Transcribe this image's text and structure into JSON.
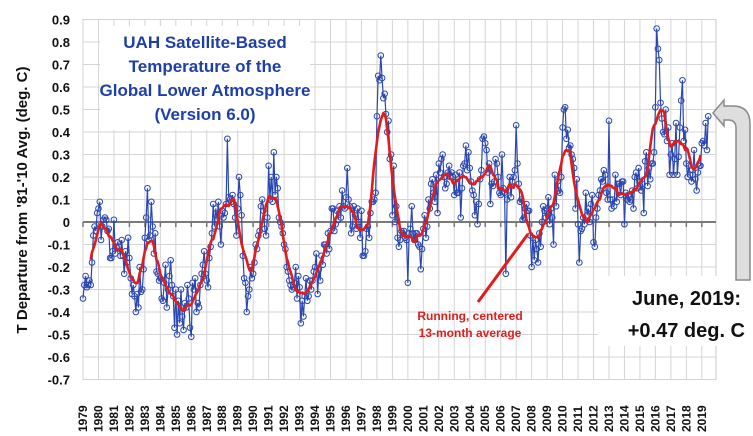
{
  "chart_data": {
    "type": "line",
    "title": [
      "UAH Satellite-Based",
      "Temperature of the",
      "Global Lower Atmosphere",
      "(Version 6.0)"
    ],
    "ylabel": "T Departure from '81-'10 Avg. (deg. C)",
    "xlabel": "",
    "ylim": [
      -0.7,
      0.9
    ],
    "yticks": [
      "0.9",
      "0.8",
      "0.7",
      "0.6",
      "0.5",
      "0.4",
      "0.3",
      "0.2",
      "0.1",
      "0",
      "-0.1",
      "-0.2",
      "-0.3",
      "-0.4",
      "-0.5",
      "-0.6",
      "-0.7"
    ],
    "xticks": [
      "1979",
      "1980",
      "1981",
      "1982",
      "1983",
      "1984",
      "1985",
      "1986",
      "1987",
      "1988",
      "1989",
      "1990",
      "1991",
      "1992",
      "1993",
      "1994",
      "1995",
      "1996",
      "1997",
      "1998",
      "1999",
      "2000",
      "2001",
      "2002",
      "2003",
      "2004",
      "2005",
      "2006",
      "2007",
      "2008",
      "2009",
      "2010",
      "2011",
      "2012",
      "2013",
      "2014",
      "2015",
      "2016",
      "2017",
      "2018",
      "2019"
    ],
    "grid": true,
    "start": "1979-01",
    "end": "2019-06",
    "series": [
      {
        "kind": "monthly",
        "color": "#2a47b0",
        "marker": "open-circle",
        "values_by_year": {
          "1979": [
            -0.34,
            -0.28,
            -0.24,
            -0.29,
            -0.28,
            -0.26,
            -0.28,
            -0.18,
            -0.06,
            -0.02,
            -0.04,
            0.04
          ],
          "1980": [
            0.06,
            0.09,
            -0.08,
            -0.02,
            0.01,
            0.02,
            0.01,
            -0.04,
            -0.03,
            -0.16,
            -0.16,
            -0.13
          ],
          "1981": [
            0.01,
            -0.14,
            -0.11,
            -0.09,
            -0.11,
            -0.15,
            -0.08,
            -0.15,
            -0.23,
            -0.13,
            -0.18,
            -0.07
          ],
          "1982": [
            -0.16,
            -0.25,
            -0.32,
            -0.28,
            -0.33,
            -0.4,
            -0.32,
            -0.38,
            -0.2,
            -0.31,
            -0.3,
            -0.21
          ],
          "1983": [
            -0.07,
            0.02,
            0.15,
            -0.08,
            -0.06,
            0.09,
            -0.02,
            -0.14,
            -0.05,
            -0.22,
            -0.23,
            -0.26
          ],
          "1984": [
            -0.25,
            -0.34,
            -0.35,
            -0.27,
            -0.19,
            -0.38,
            -0.3,
            -0.24,
            -0.17,
            -0.28,
            -0.33,
            -0.47
          ],
          "1985": [
            -0.3,
            -0.5,
            -0.35,
            -0.45,
            -0.3,
            -0.42,
            -0.48,
            -0.36,
            -0.38,
            -0.28,
            -0.34,
            -0.47
          ],
          "1986": [
            -0.51,
            -0.27,
            -0.3,
            -0.25,
            -0.4,
            -0.36,
            -0.38,
            -0.28,
            -0.23,
            -0.19,
            -0.13,
            -0.23
          ],
          "1987": [
            -0.26,
            -0.29,
            -0.16,
            -0.11,
            -0.05,
            0.08,
            -0.02,
            0.06,
            0.01,
            0.09,
            -0.02,
            -0.1
          ],
          "1988": [
            0.05,
            0.02,
            0.04,
            0.08,
            0.37,
            0.11,
            0.1,
            0.09,
            0.12,
            0.08,
            0.02,
            -0.06
          ],
          "1989": [
            0.06,
            0.2,
            0.12,
            0.03,
            -0.15,
            -0.25,
            -0.27,
            -0.4,
            -0.33,
            -0.3,
            -0.2,
            -0.25
          ],
          "1990": [
            -0.23,
            -0.18,
            -0.1,
            -0.12,
            -0.06,
            -0.04,
            0.07,
            0.1,
            0.05,
            -0.03,
            -0.06,
            0.02
          ],
          "1991": [
            0.25,
            0.1,
            0.2,
            0.09,
            0.31,
            0.12,
            0.2,
            0.15,
            0.02,
            0.0,
            -0.02,
            -0.05
          ],
          "1992": [
            -0.1,
            -0.12,
            -0.2,
            -0.22,
            -0.26,
            -0.28,
            -0.3,
            -0.29,
            -0.27,
            -0.2,
            -0.34,
            -0.24
          ],
          "1993": [
            -0.29,
            -0.45,
            -0.35,
            -0.42,
            -0.33,
            -0.25,
            -0.35,
            -0.33,
            -0.26,
            -0.3,
            -0.26,
            -0.22
          ],
          "1994": [
            -0.2,
            -0.14,
            -0.32,
            -0.21,
            -0.26,
            -0.15,
            -0.19,
            -0.1,
            -0.1,
            -0.14,
            -0.05,
            -0.12
          ],
          "1995": [
            -0.04,
            0.06,
            0.06,
            -0.04,
            -0.01,
            0.05,
            0.01,
            0.07,
            0.02,
            0.14,
            0.07,
            0.06
          ],
          "1996": [
            0.11,
            0.24,
            0.1,
            0.07,
            -0.05,
            -0.02,
            0.07,
            0.03,
            -0.03,
            0.06,
            0.0,
            -0.07
          ],
          "1997": [
            0.05,
            -0.15,
            -0.15,
            -0.13,
            -0.03,
            -0.02,
            -0.07,
            0.04,
            0.09,
            0.09,
            0.1,
            0.13
          ],
          "1998": [
            0.47,
            0.65,
            0.63,
            0.74,
            0.64,
            0.55,
            0.57,
            0.48,
            0.4,
            0.45,
            0.28,
            0.3
          ],
          "1999": [
            0.03,
            0.25,
            0.0,
            0.07,
            -0.07,
            -0.11,
            -0.08,
            -0.04,
            -0.05,
            -0.04,
            -0.07,
            -0.08
          ],
          "2000": [
            -0.27,
            -0.05,
            -0.03,
            0.07,
            -0.05,
            -0.08,
            -0.05,
            -0.05,
            -0.1,
            -0.11,
            -0.21,
            -0.12
          ],
          "2001": [
            -0.03,
            0.03,
            -0.07,
            -0.02,
            0.1,
            0.06,
            0.17,
            0.19,
            0.13,
            0.09,
            0.21,
            0.04
          ],
          "2002": [
            0.26,
            0.22,
            0.28,
            0.3,
            0.2,
            0.15,
            0.17,
            0.22,
            0.25,
            0.2,
            0.22,
            0.2
          ],
          "2003": [
            0.12,
            0.21,
            0.13,
            0.13,
            0.22,
            0.02,
            0.15,
            0.25,
            0.26,
            0.34,
            0.23,
            0.31
          ],
          "2004": [
            0.24,
            0.18,
            0.14,
            0.12,
            0.03,
            0.09,
            -0.01,
            0.08,
            0.19,
            0.23,
            0.37,
            0.38
          ],
          "2005": [
            0.35,
            0.32,
            0.22,
            0.26,
            0.08,
            0.17,
            0.16,
            0.18,
            0.28,
            0.26,
            0.2,
            0.13
          ],
          "2006": [
            0.12,
            0.3,
            0.15,
            0.13,
            -0.23,
            0.1,
            0.14,
            0.2,
            0.11,
            0.18,
            0.2,
            0.23
          ],
          "2007": [
            0.43,
            0.26,
            0.17,
            0.09,
            0.1,
            0.01,
            0.02,
            0.06,
            0.08,
            0.05,
            0.05,
            -0.06
          ],
          "2008": [
            -0.2,
            -0.07,
            -0.17,
            -0.08,
            -0.12,
            -0.18,
            -0.05,
            -0.11,
            0.0,
            0.07,
            0.05,
            0.02
          ],
          "2009": [
            0.06,
            0.11,
            -0.01,
            0.06,
            0.02,
            -0.1,
            0.21,
            0.07,
            0.18,
            0.14,
            0.13,
            0.2
          ],
          "2010": [
            0.42,
            0.5,
            0.51,
            0.37,
            0.41,
            0.33,
            0.34,
            0.3,
            0.28,
            0.24,
            0.06,
            0.19
          ],
          "2011": [
            -0.01,
            -0.18,
            -0.04,
            -0.03,
            0.02,
            -0.01,
            0.13,
            0.03,
            0.06,
            0.0,
            0.08,
            0.12
          ],
          "2012": [
            -0.09,
            -0.11,
            0.02,
            0.06,
            0.12,
            0.14,
            0.19,
            0.18,
            0.23,
            0.21,
            0.13,
            0.1
          ],
          "2013": [
            0.45,
            0.1,
            0.06,
            0.1,
            0.07,
            0.21,
            0.09,
            0.17,
            0.17,
            0.12,
            0.18,
            0.18
          ],
          "2014": [
            -0.01,
            0.13,
            0.1,
            0.12,
            0.09,
            0.1,
            0.14,
            0.06,
            0.2,
            0.22,
            0.15,
            0.24
          ],
          "2015": [
            0.18,
            0.14,
            0.17,
            0.04,
            0.27,
            0.31,
            0.16,
            0.24,
            0.19,
            0.26,
            0.26,
            0.31
          ],
          "2016": [
            0.51,
            0.86,
            0.77,
            0.72,
            0.53,
            0.46,
            0.4,
            0.39,
            0.5,
            0.36,
            0.42,
            0.21
          ],
          "2017": [
            0.3,
            0.35,
            0.21,
            0.28,
            0.44,
            0.21,
            0.29,
            0.42,
            0.54,
            0.63,
            0.36,
            0.41
          ],
          "2018": [
            0.26,
            0.2,
            0.25,
            0.21,
            0.18,
            0.21,
            0.32,
            0.19,
            0.14,
            0.22,
            0.25,
            0.25
          ],
          "2019": [
            0.35,
            0.36,
            0.34,
            0.44,
            0.32,
            0.47
          ]
        }
      },
      {
        "kind": "running-mean",
        "window_months": 13,
        "color": "#e01c1c"
      }
    ],
    "annotations": {
      "running_mean_label": [
        "Running, centered",
        "13-month average"
      ],
      "latest_label": [
        "June, 2019:",
        "+0.47 deg. C"
      ]
    }
  }
}
